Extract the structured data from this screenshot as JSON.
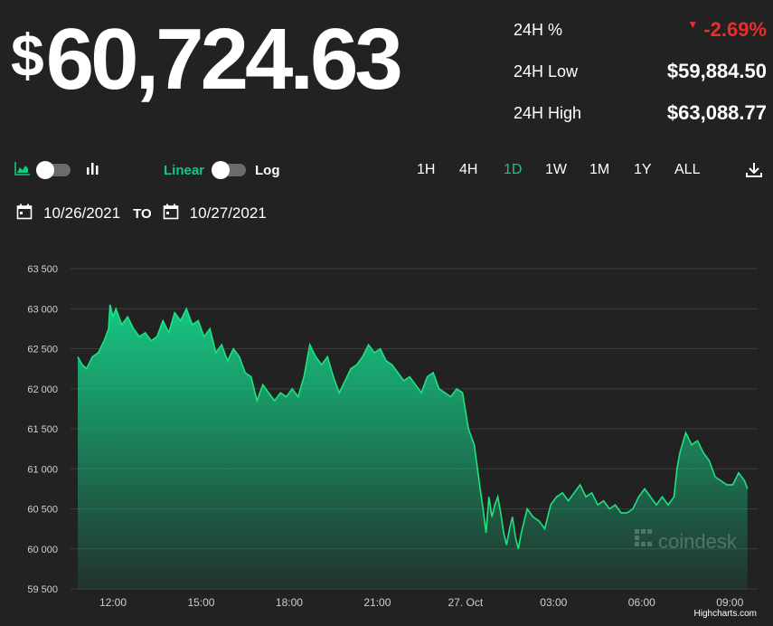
{
  "price": {
    "currency_symbol": "$",
    "amount": "60,724.63"
  },
  "stats": {
    "change_label": "24H %",
    "change_value": "-2.69%",
    "low_label": "24H Low",
    "low_value": "$59,884.50",
    "high_label": "24H High",
    "high_value": "$63,088.77"
  },
  "controls": {
    "linear_label": "Linear",
    "log_label": "Log",
    "ranges": [
      "1H",
      "4H",
      "1D",
      "1W",
      "1M",
      "1Y",
      "ALL"
    ],
    "active_range": "1D"
  },
  "date_range": {
    "from": "10/26/2021",
    "to_label": "TO",
    "to": "10/27/2021"
  },
  "watermark": "coindesk",
  "credit": "Highcharts.com",
  "colors": {
    "accent": "#16c784",
    "negative": "#ee2c2c",
    "background": "#222222",
    "grid": "#3c3c3c"
  },
  "chart_data": {
    "type": "area",
    "ylim": [
      59500,
      63500
    ],
    "y_ticks": [
      59500,
      60000,
      60500,
      61000,
      61500,
      62000,
      62500,
      63000,
      63500
    ],
    "y_tick_labels": [
      "59 500",
      "60 000",
      "60 500",
      "61 000",
      "61 500",
      "62 000",
      "62 500",
      "63 000",
      "63 500"
    ],
    "x_ticks": [
      12,
      15,
      18,
      21,
      24,
      27,
      30,
      33
    ],
    "x_tick_labels": [
      "12:00",
      "15:00",
      "18:00",
      "21:00",
      "27. Oct",
      "03:00",
      "06:00",
      "09:00"
    ],
    "xlim": [
      10.8,
      33.7
    ],
    "grid": true,
    "series": [
      {
        "x": [
          10.8,
          10.95,
          11.1,
          11.3,
          11.5,
          11.7,
          11.85,
          11.9,
          12.0,
          12.1,
          12.3,
          12.5,
          12.7,
          12.9,
          13.1,
          13.3,
          13.5,
          13.7,
          13.9,
          14.1,
          14.3,
          14.5,
          14.7,
          14.9,
          15.1,
          15.3,
          15.5,
          15.7,
          15.9,
          16.1,
          16.3,
          16.5,
          16.7,
          16.9,
          17.1,
          17.3,
          17.5,
          17.7,
          17.9,
          18.1,
          18.3,
          18.5,
          18.7,
          18.9,
          19.1,
          19.3,
          19.5,
          19.7,
          19.9,
          20.1,
          20.3,
          20.5,
          20.7,
          20.9,
          21.1,
          21.3,
          21.5,
          21.7,
          21.9,
          22.1,
          22.3,
          22.5,
          22.7,
          22.9,
          23.1,
          23.3,
          23.5,
          23.7,
          23.9,
          24.1,
          24.3,
          24.5,
          24.6,
          24.7,
          24.8,
          24.9,
          25.0,
          25.1,
          25.2,
          25.3,
          25.4,
          25.5,
          25.6,
          25.7,
          25.8,
          25.9,
          26.1,
          26.3,
          26.5,
          26.7,
          26.9,
          27.1,
          27.3,
          27.5,
          27.7,
          27.9,
          28.1,
          28.3,
          28.5,
          28.7,
          28.9,
          29.1,
          29.3,
          29.5,
          29.7,
          29.9,
          30.1,
          30.3,
          30.5,
          30.7,
          30.9,
          31.1,
          31.2,
          31.3,
          31.5,
          31.7,
          31.9,
          32.1,
          32.3,
          32.5,
          32.7,
          32.9,
          33.1,
          33.3,
          33.5,
          33.6
        ],
        "y": [
          62400,
          62300,
          62250,
          62400,
          62450,
          62600,
          62750,
          63050,
          62900,
          63000,
          62800,
          62900,
          62750,
          62650,
          62700,
          62600,
          62650,
          62850,
          62700,
          62950,
          62850,
          63000,
          62800,
          62850,
          62650,
          62750,
          62450,
          62550,
          62350,
          62500,
          62400,
          62200,
          62150,
          61850,
          62050,
          61950,
          61850,
          61950,
          61900,
          62000,
          61900,
          62150,
          62550,
          62400,
          62300,
          62400,
          62150,
          61950,
          62100,
          62250,
          62300,
          62400,
          62550,
          62450,
          62500,
          62350,
          62300,
          62200,
          62100,
          62150,
          62050,
          61950,
          62150,
          62200,
          62000,
          61950,
          61900,
          62000,
          61950,
          61500,
          61300,
          60750,
          60500,
          60200,
          60650,
          60400,
          60550,
          60650,
          60450,
          60200,
          60050,
          60250,
          60400,
          60150,
          60000,
          60200,
          60500,
          60400,
          60350,
          60250,
          60550,
          60650,
          60700,
          60600,
          60700,
          60800,
          60650,
          60700,
          60550,
          60600,
          60500,
          60550,
          60450,
          60450,
          60500,
          60650,
          60750,
          60650,
          60550,
          60650,
          60550,
          60650,
          61000,
          61200,
          61450,
          61300,
          61350,
          61200,
          61100,
          60900,
          60850,
          60800,
          60800,
          60950,
          60850,
          60750
        ]
      }
    ]
  }
}
